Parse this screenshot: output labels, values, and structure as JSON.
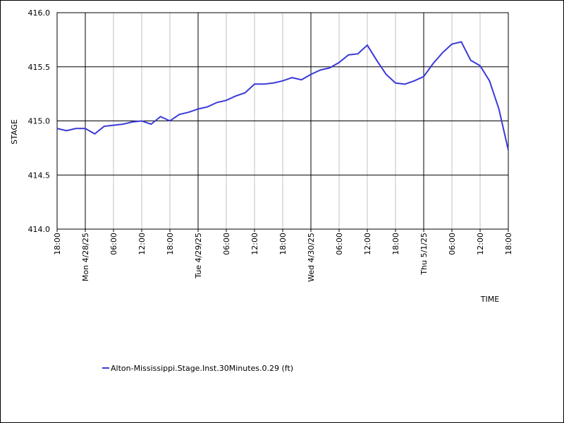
{
  "chart_data": {
    "type": "line",
    "x_label": "TIME",
    "y_label": "STAGE",
    "x": [
      "2025-04-27T18:00",
      "2025-04-27T20:00",
      "2025-04-27T22:00",
      "2025-04-28T00:00",
      "2025-04-28T02:00",
      "2025-04-28T04:00",
      "2025-04-28T06:00",
      "2025-04-28T08:00",
      "2025-04-28T10:00",
      "2025-04-28T12:00",
      "2025-04-28T14:00",
      "2025-04-28T16:00",
      "2025-04-28T18:00",
      "2025-04-28T20:00",
      "2025-04-28T22:00",
      "2025-04-29T00:00",
      "2025-04-29T02:00",
      "2025-04-29T04:00",
      "2025-04-29T06:00",
      "2025-04-29T08:00",
      "2025-04-29T10:00",
      "2025-04-29T12:00",
      "2025-04-29T14:00",
      "2025-04-29T16:00",
      "2025-04-29T18:00",
      "2025-04-29T20:00",
      "2025-04-29T22:00",
      "2025-04-30T00:00",
      "2025-04-30T02:00",
      "2025-04-30T04:00",
      "2025-04-30T06:00",
      "2025-04-30T08:00",
      "2025-04-30T10:00",
      "2025-04-30T12:00",
      "2025-04-30T14:00",
      "2025-04-30T16:00",
      "2025-04-30T18:00",
      "2025-04-30T20:00",
      "2025-04-30T22:00",
      "2025-05-01T00:00",
      "2025-05-01T02:00",
      "2025-05-01T04:00",
      "2025-05-01T06:00",
      "2025-05-01T08:00",
      "2025-05-01T10:00",
      "2025-05-01T12:00",
      "2025-05-01T14:00",
      "2025-05-01T16:00",
      "2025-05-01T18:00"
    ],
    "series": [
      {
        "name": "Alton-Mississippi.Stage.Inst.30Minutes.0.29 (ft)",
        "color": "#3a3ad8",
        "values": [
          414.93,
          414.91,
          414.93,
          414.93,
          414.88,
          414.95,
          414.96,
          414.97,
          414.99,
          415.0,
          414.97,
          415.04,
          415.0,
          415.06,
          415.08,
          415.11,
          415.13,
          415.17,
          415.19,
          415.23,
          415.26,
          415.34,
          415.34,
          415.35,
          415.37,
          415.4,
          415.38,
          415.43,
          415.47,
          415.49,
          415.54,
          415.61,
          415.62,
          415.7,
          415.56,
          415.43,
          415.35,
          415.34,
          415.37,
          415.41,
          415.53,
          415.63,
          415.71,
          415.73,
          415.56,
          415.51,
          415.37,
          415.11,
          414.73
        ]
      }
    ],
    "xlim": [
      "2025-04-27T18:00",
      "2025-05-01T18:00"
    ],
    "xticks": [
      {
        "value": "2025-04-27T18:00",
        "label": "18:00"
      },
      {
        "value": "2025-04-28T00:00",
        "label": "Mon 4/28/25"
      },
      {
        "value": "2025-04-28T06:00",
        "label": "06:00"
      },
      {
        "value": "2025-04-28T12:00",
        "label": "12:00"
      },
      {
        "value": "2025-04-28T18:00",
        "label": "18:00"
      },
      {
        "value": "2025-04-29T00:00",
        "label": "Tue 4/29/25"
      },
      {
        "value": "2025-04-29T06:00",
        "label": "06:00"
      },
      {
        "value": "2025-04-29T12:00",
        "label": "12:00"
      },
      {
        "value": "2025-04-29T18:00",
        "label": "18:00"
      },
      {
        "value": "2025-04-30T00:00",
        "label": "Wed 4/30/25"
      },
      {
        "value": "2025-04-30T06:00",
        "label": "06:00"
      },
      {
        "value": "2025-04-30T12:00",
        "label": "12:00"
      },
      {
        "value": "2025-04-30T18:00",
        "label": "18:00"
      },
      {
        "value": "2025-05-01T00:00",
        "label": "Thu 5/1/25"
      },
      {
        "value": "2025-05-01T06:00",
        "label": "06:00"
      },
      {
        "value": "2025-05-01T12:00",
        "label": "12:00"
      },
      {
        "value": "2025-05-01T18:00",
        "label": "18:00"
      }
    ],
    "ylim": [
      414,
      416
    ],
    "yticks": [
      {
        "value": 414,
        "label": "414.0"
      },
      {
        "value": 414.5,
        "label": "414.5"
      },
      {
        "value": 415,
        "label": "415.0"
      },
      {
        "value": 415.5,
        "label": "415.5"
      },
      {
        "value": 416,
        "label": "416.0"
      }
    ],
    "grid": true
  }
}
